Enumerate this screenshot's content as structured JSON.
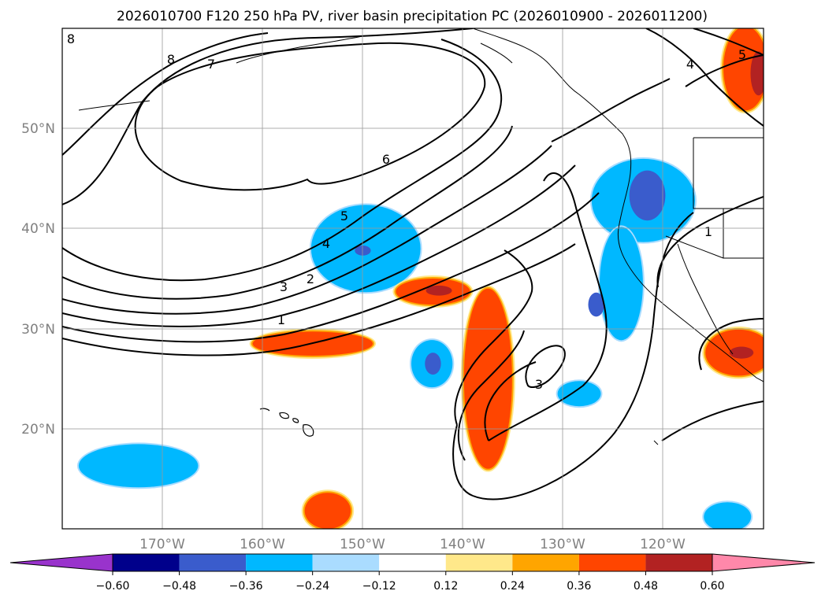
{
  "chart_data": {
    "type": "contour",
    "title": "2026010700 F120 250 hPa PV, river basin precipitation PC (2026010900 - 2026011200)",
    "map": {
      "lon_range": [
        -180,
        -110
      ],
      "lat_range": [
        10,
        60
      ],
      "lon_ticks": [
        -170,
        -160,
        -150,
        -140,
        -130,
        -120
      ],
      "lon_tick_labels": [
        "170°W",
        "160°W",
        "150°W",
        "140°W",
        "130°W",
        "120°W"
      ],
      "lat_ticks": [
        20,
        30,
        40,
        50
      ],
      "lat_tick_labels": [
        "20°N",
        "30°N",
        "40°N",
        "50°N"
      ],
      "grid": true
    },
    "pv_contour_labels": [
      {
        "text": "1",
        "lon": -152.0,
        "lat": 30.8
      },
      {
        "text": "2",
        "lon": -149.4,
        "lat": 35.0
      },
      {
        "text": "3",
        "lon": -151.2,
        "lat": 34.2
      },
      {
        "text": "4",
        "lon": -147.0,
        "lat": 37.7
      },
      {
        "text": "5",
        "lon": -145.6,
        "lat": 40.2
      },
      {
        "text": "6",
        "lon": -140.0,
        "lat": 46.5
      },
      {
        "text": "7",
        "lon": -164.0,
        "lat": 56.8
      },
      {
        "text": "8",
        "lon": -169.0,
        "lat": 57.3
      },
      {
        "text": "8",
        "lon": -179.3,
        "lat": 59.4
      },
      {
        "text": "3",
        "lon": -130.1,
        "lat": 24.4
      },
      {
        "text": "1",
        "lon": -111.3,
        "lat": 38.6
      },
      {
        "text": "4",
        "lon": -112.5,
        "lat": 56.8
      },
      {
        "text": "5",
        "lon": -107.8,
        "lat": 57.9
      }
    ],
    "colorbar": {
      "ticks": [
        "−0.60",
        "−0.48",
        "−0.36",
        "−0.24",
        "−0.12",
        "0.12",
        "0.24",
        "0.36",
        "0.48",
        "0.60"
      ],
      "bounds": [
        -0.6,
        -0.48,
        -0.36,
        -0.24,
        -0.12,
        0.12,
        0.24,
        0.36,
        0.48,
        0.6
      ],
      "under_color": "#9933cc",
      "over_color": "#ff88aa",
      "colors": [
        "#00008b",
        "#3a5ccc",
        "#00b8ff",
        "#aadcff",
        "#ffffff",
        "#ffe88a",
        "#ffa500",
        "#ff4500",
        "#b22222"
      ]
    },
    "pc_regions": [
      {
        "name": "hi-neg-1",
        "lon": -149.7,
        "lat": 38.0,
        "rlon": 5.3,
        "rlat": 4.2,
        "level": -0.36
      },
      {
        "name": "hi-neg-core-1",
        "lon": -150.0,
        "lat": 37.8,
        "rlon": 0.8,
        "rlat": 0.5,
        "level": -0.48
      },
      {
        "name": "hi-neg-2",
        "lon": -122.0,
        "lat": 42.8,
        "rlon": 5.0,
        "rlat": 4.0,
        "level": -0.36
      },
      {
        "name": "hi-neg-core-2",
        "lon": -121.6,
        "lat": 43.3,
        "rlon": 1.8,
        "rlat": 2.5,
        "level": -0.48
      },
      {
        "name": "hi-neg-3",
        "lon": -124.2,
        "lat": 34.5,
        "rlon": 2.0,
        "rlat": 5.5,
        "level": -0.36
      },
      {
        "name": "hi-neg-core-3",
        "lon": -126.7,
        "lat": 32.4,
        "rlon": 0.8,
        "rlat": 1.2,
        "level": -0.48
      },
      {
        "name": "hi-neg-4",
        "lon": -143.1,
        "lat": 26.5,
        "rlon": 1.9,
        "rlat": 2.2,
        "level": -0.36
      },
      {
        "name": "hi-neg-core-4",
        "lon": -143.0,
        "lat": 26.5,
        "rlon": 0.8,
        "rlat": 1.1,
        "level": -0.48
      },
      {
        "name": "hi-neg-5",
        "lon": -128.4,
        "lat": 23.5,
        "rlon": 2.0,
        "rlat": 1.1,
        "level": -0.36
      },
      {
        "name": "hi-neg-6",
        "lon": -172.4,
        "lat": 16.3,
        "rlon": 5.8,
        "rlat": 2.0,
        "level": -0.36
      },
      {
        "name": "hi-neg-7",
        "lon": -113.6,
        "lat": 11.2,
        "rlon": 2.2,
        "rlat": 1.3,
        "level": -0.36
      },
      {
        "name": "hi-pos-1",
        "lon": -143.0,
        "lat": 33.7,
        "rlon": 3.7,
        "rlat": 1.3,
        "level": 0.36
      },
      {
        "name": "hi-pos-core-1",
        "lon": -142.4,
        "lat": 33.8,
        "rlon": 1.3,
        "rlat": 0.5,
        "level": 0.48
      },
      {
        "name": "hi-pos-2",
        "lon": -155.0,
        "lat": 28.5,
        "rlon": 6.0,
        "rlat": 1.2,
        "level": 0.36
      },
      {
        "name": "hi-pos-3",
        "lon": -137.5,
        "lat": 25.0,
        "rlon": 2.4,
        "rlat": 9.0,
        "level": 0.36
      },
      {
        "name": "hi-pos-4",
        "lon": -153.5,
        "lat": 11.8,
        "rlon": 2.3,
        "rlat": 1.8,
        "level": 0.36
      },
      {
        "name": "hi-pos-5",
        "lon": -112.5,
        "lat": 27.6,
        "rlon": 3.3,
        "rlat": 2.3,
        "level": 0.36
      },
      {
        "name": "hi-pos-core-5",
        "lon": -112.2,
        "lat": 27.6,
        "rlon": 1.2,
        "rlat": 0.6,
        "level": 0.48
      },
      {
        "name": "hi-pos-6",
        "lon": -111.8,
        "lat": 56.0,
        "rlon": 2.2,
        "rlat": 4.2,
        "level": 0.36
      },
      {
        "name": "hi-pos-core-6",
        "lon": -110.5,
        "lat": 55.5,
        "rlon": 0.8,
        "rlat": 2.2,
        "level": 0.48
      }
    ]
  }
}
